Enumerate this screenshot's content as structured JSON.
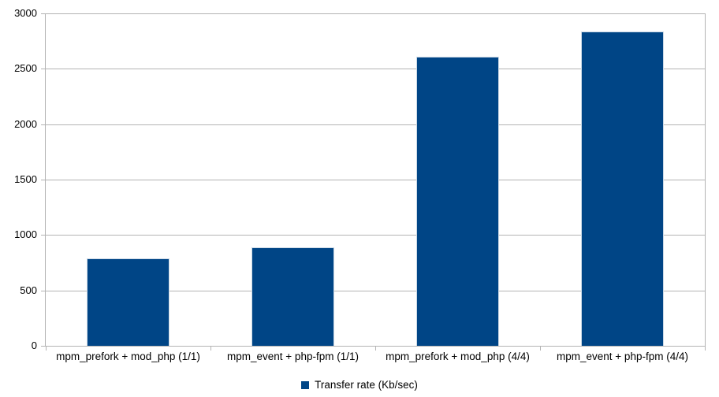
{
  "chart_data": {
    "type": "bar",
    "title": "",
    "categories": [
      "mpm_prefork + mod_php (1/1)",
      "mpm_event + php-fpm (1/1)",
      "mpm_prefork + mod_php (4/4)",
      "mpm_event + php-fpm (4/4)"
    ],
    "series": [
      {
        "name": "Transfer rate (Kb/sec)",
        "values": [
          790,
          890,
          2610,
          2840
        ]
      }
    ],
    "xlabel": "",
    "ylabel": "",
    "ylim": [
      0,
      3000
    ],
    "yticks": [
      0,
      500,
      1000,
      1500,
      2000,
      2500,
      3000
    ],
    "grid": "horizontal",
    "legend_position": "bottom",
    "colors": {
      "bar_fill": "#004586",
      "bar_border": "#ccd9e6",
      "grid_line": "#b3b3b3",
      "axis_line": "#b3b3b3",
      "text": "#000000",
      "background": "#ffffff"
    }
  },
  "legend": {
    "label": "Transfer rate (Kb/sec)"
  }
}
